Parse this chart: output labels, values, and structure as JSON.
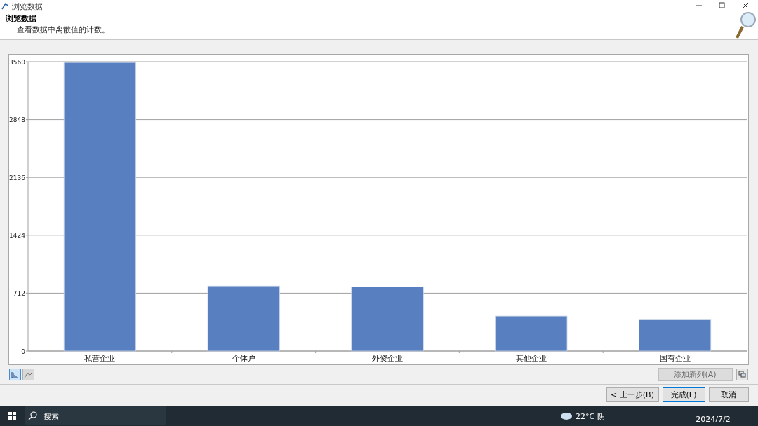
{
  "chart_data": {
    "type": "bar",
    "title": "浏览数据",
    "subtitle": "查看数据中离散值的计数。",
    "categories": [
      "私营企业",
      "个体户",
      "外资企业",
      "其他企业",
      "国有企业"
    ],
    "values": [
      3550,
      800,
      790,
      430,
      390
    ],
    "color": "#587fbf",
    "ylim": [
      0,
      3560
    ],
    "yticks": [
      0,
      712,
      1424,
      2136,
      2848,
      3560
    ],
    "grid": "y",
    "annotations": [
      "添加新列(A)",
      "< 上一步(B)",
      "完成(F)",
      "取消",
      "搜索",
      "22°C 阴",
      "2024/7/2"
    ]
  }
}
